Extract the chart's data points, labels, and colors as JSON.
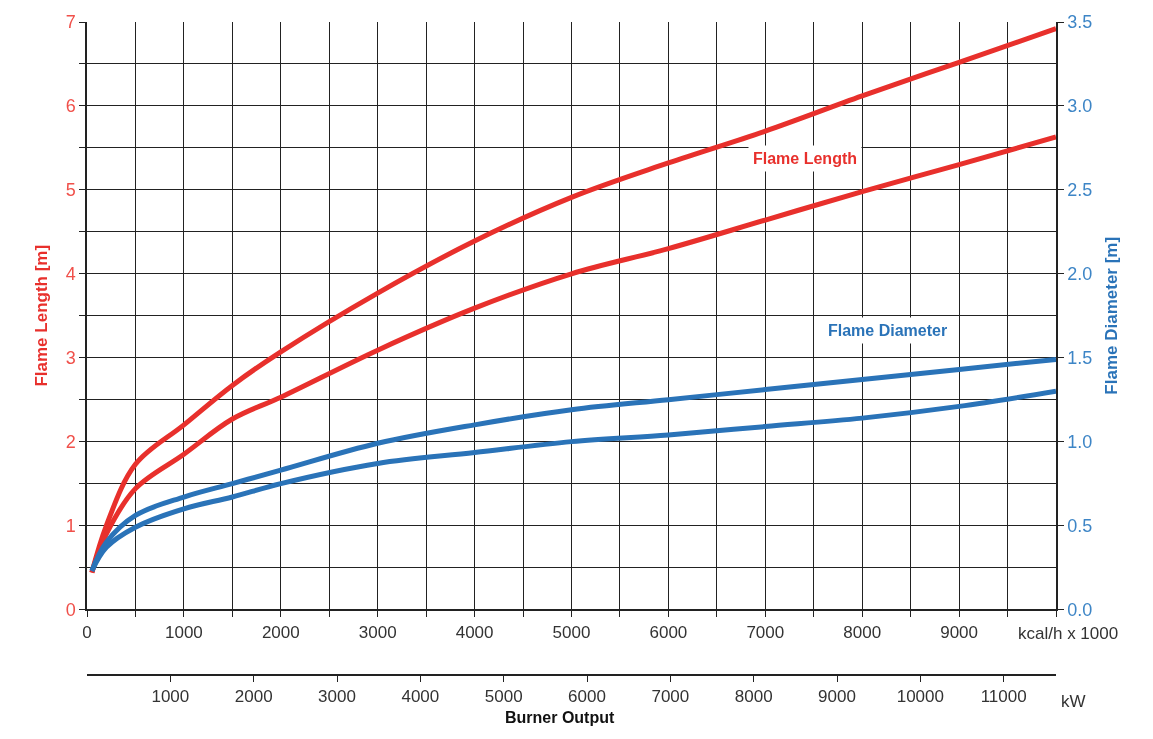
{
  "chart_data": {
    "type": "line",
    "xlabel": "kcal/h x 1000",
    "x2label": "kW",
    "ylabel": "Flame Length [m]",
    "y2label": "Flame Diameter [m]",
    "annotations": [
      "Flame Length",
      "Flame Diameter",
      "Burner Output"
    ],
    "x": [
      50,
      200,
      500,
      1000,
      1500,
      2000,
      3000,
      4000,
      5000,
      6000,
      7000,
      8000,
      9000,
      10000
    ],
    "series": [
      {
        "color": "#e8302c",
        "values": [
          0.44,
          1.0,
          1.73,
          2.2,
          2.67,
          3.07,
          3.77,
          4.39,
          4.91,
          5.32,
          5.7,
          6.12,
          6.52,
          6.92
        ]
      },
      {
        "color": "#e8302c",
        "values": [
          0.44,
          0.9,
          1.44,
          1.85,
          2.27,
          2.53,
          3.09,
          3.59,
          4.0,
          4.3,
          4.64,
          4.98,
          5.3,
          5.63
        ]
      },
      {
        "color": "#2a73b8",
        "axis": "y2",
        "values": [
          0.23,
          0.4,
          0.56,
          0.67,
          0.75,
          0.83,
          0.99,
          1.1,
          1.19,
          1.25,
          1.31,
          1.37,
          1.43,
          1.49
        ]
      },
      {
        "color": "#2a73b8",
        "axis": "y2",
        "values": [
          0.23,
          0.37,
          0.49,
          0.6,
          0.67,
          0.75,
          0.87,
          0.935,
          1.0,
          1.04,
          1.09,
          1.14,
          1.21,
          1.3
        ]
      }
    ],
    "xlim": [
      0,
      10000
    ],
    "xticks": [
      0,
      {
        "value": 500,
        "label": null
      },
      1000,
      {
        "value": 1500,
        "label": null
      },
      2000,
      {
        "value": 2500,
        "label": null
      },
      3000,
      {
        "value": 3500,
        "label": null
      },
      4000,
      {
        "value": 4500,
        "label": null
      },
      5000,
      {
        "value": 5500,
        "label": null
      },
      6000,
      {
        "value": 6500,
        "label": null
      },
      7000,
      {
        "value": 7500,
        "label": null
      },
      8000,
      {
        "value": 8500,
        "label": null
      },
      9000,
      {
        "value": 9500,
        "label": null
      },
      {
        "value": 10000,
        "label": null
      }
    ],
    "x2lim": [
      0,
      11628
    ],
    "x2ticks": [
      1000,
      2000,
      3000,
      4000,
      5000,
      6000,
      7000,
      8000,
      9000,
      10000,
      11000
    ],
    "ylim": [
      0,
      7
    ],
    "yticks": [
      0,
      {
        "value": 0.5,
        "label": null
      },
      1,
      {
        "value": 1.5,
        "label": null
      },
      2,
      {
        "value": 2.5,
        "label": null
      },
      3,
      {
        "value": 3.5,
        "label": null
      },
      4,
      {
        "value": 4.5,
        "label": null
      },
      5,
      {
        "value": 5.5,
        "label": null
      },
      6,
      {
        "value": 6.5,
        "label": null
      },
      7
    ],
    "y2lim": [
      0,
      3.5
    ],
    "y2ticks": [
      {
        "value": 0,
        "label": "0.0"
      },
      {
        "value": 0.5,
        "label": "0.5"
      },
      {
        "value": 1,
        "label": "1.0"
      },
      {
        "value": 1.5,
        "label": "1.5"
      },
      {
        "value": 2,
        "label": "2.0"
      },
      {
        "value": 2.5,
        "label": "2.5"
      },
      {
        "value": 3,
        "label": "3.0"
      },
      {
        "value": 3.5,
        "label": "3.5"
      }
    ],
    "grid": true,
    "marker": "none",
    "line_style": "solid"
  }
}
